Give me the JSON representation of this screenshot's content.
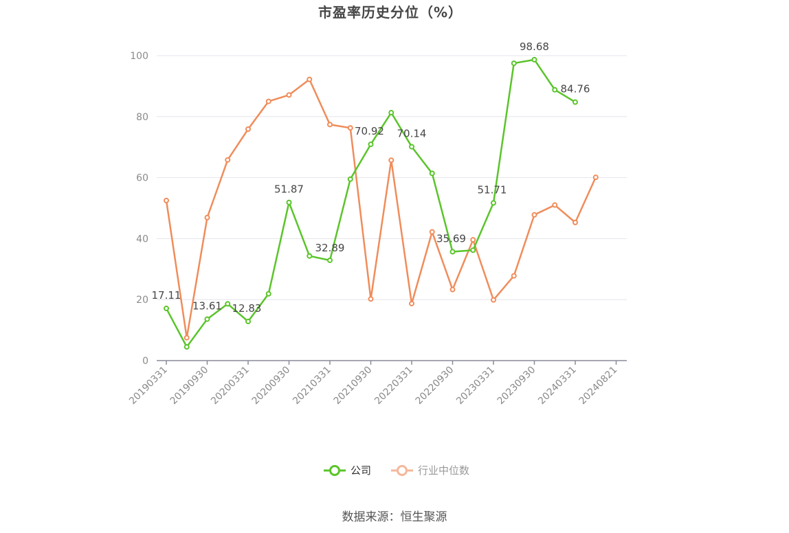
{
  "chart_data": {
    "type": "line",
    "title": "市盈率历史分位（%）",
    "x_tick_labels": [
      "20190331",
      "20190930",
      "20200331",
      "20200930",
      "20210331",
      "20210930",
      "20220331",
      "20220930",
      "20230331",
      "20230930",
      "20240331",
      "20240821"
    ],
    "y_ticks": [
      0,
      20,
      40,
      60,
      80,
      100
    ],
    "ylim": [
      0,
      100
    ],
    "grid": true,
    "legend_position": "bottom",
    "series": [
      {
        "name": "公司",
        "color": "#5ac42a",
        "values": [
          17.11,
          4.5,
          13.61,
          18.6,
          12.83,
          21.9,
          51.87,
          34.3,
          32.89,
          59.5,
          70.92,
          81.3,
          70.14,
          61.4,
          35.69,
          36.2,
          51.71,
          97.5,
          98.68,
          88.8,
          84.76,
          null
        ],
        "labels": [
          "17.11",
          null,
          "13.61",
          null,
          "12.83",
          null,
          "51.87",
          null,
          "32.89",
          null,
          "70.92",
          null,
          "70.14",
          null,
          "35.69",
          null,
          "51.71",
          null,
          "98.68",
          null,
          "84.76",
          null
        ]
      },
      {
        "name": "行业中位数",
        "color": "#f08c5a",
        "values": [
          52.5,
          7.5,
          46.9,
          65.8,
          75.9,
          85.0,
          87.1,
          92.2,
          77.4,
          76.3,
          20.2,
          65.7,
          18.7,
          42.2,
          23.3,
          39.6,
          19.9,
          27.8,
          47.8,
          51.0,
          45.3,
          60.1
        ],
        "labels": []
      }
    ]
  },
  "legend": [
    {
      "label": "公司",
      "color": "#5ac42a",
      "muted": false
    },
    {
      "label": "行业中位数",
      "color": "#f5b79a",
      "muted": true
    }
  ],
  "source": "数据来源：恒生聚源"
}
